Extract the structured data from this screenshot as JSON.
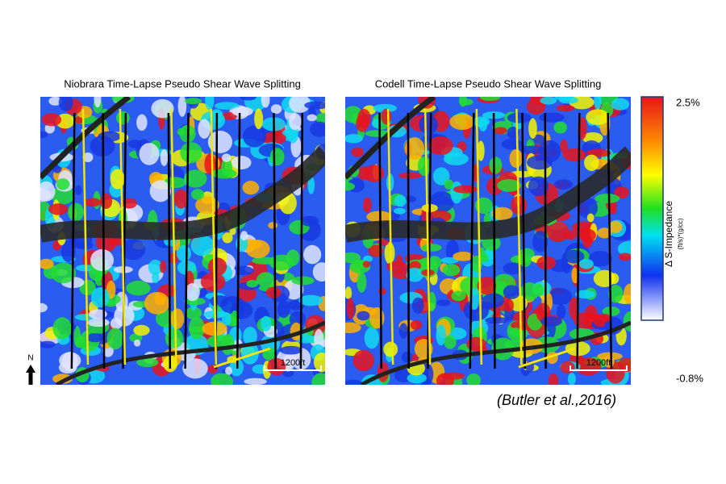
{
  "panels": [
    {
      "title": "Niobrara Time-Lapse Pseudo Shear Wave Splitting",
      "scale_label": "1200ft"
    },
    {
      "title": "Codell Time-Lapse Pseudo Shear Wave Splitting",
      "scale_label": "1200ft"
    }
  ],
  "colorbar": {
    "max_label": "2.5%",
    "min_label": "-0.8%",
    "label": "Δ S-Impedance",
    "units": "(ft/s)*(g/cc)"
  },
  "north_label": "N",
  "citation": "(Butler et al.,2016)"
}
